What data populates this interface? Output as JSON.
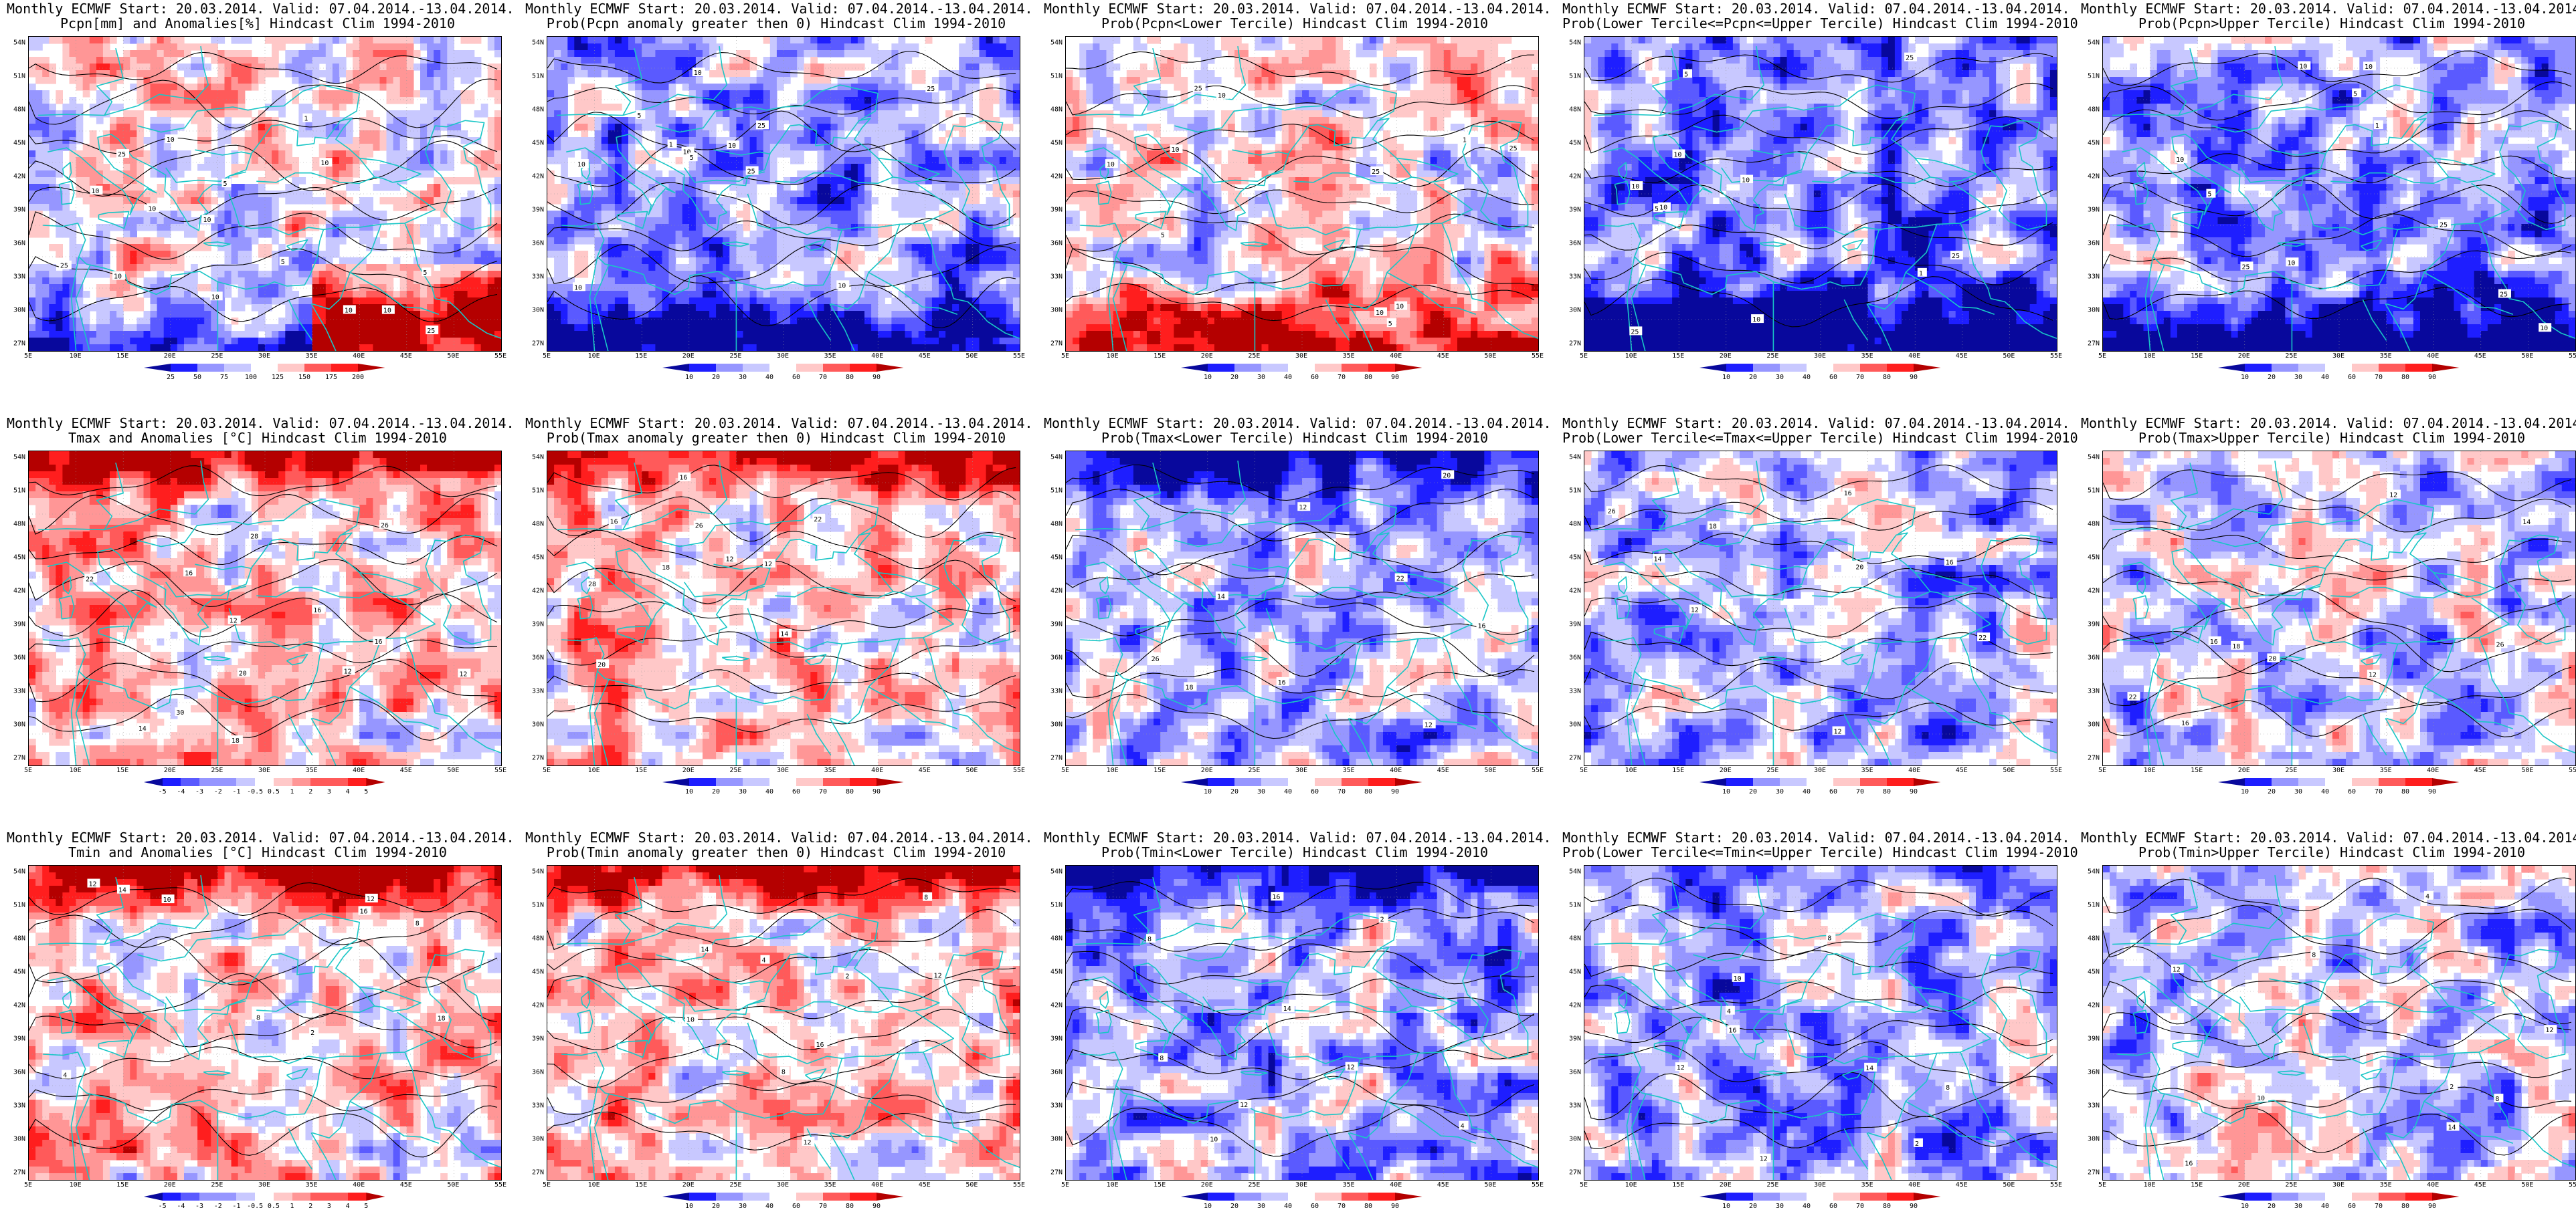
{
  "figure": {
    "header_common": "Monthly ECMWF Start: 20.03.2014. Valid: 07.04.2014.-13.04.2014.",
    "hindcast": "Hindcast Clim 1994-2010",
    "lat_ticks": [
      "54N",
      "51N",
      "48N",
      "45N",
      "42N",
      "39N",
      "36N",
      "33N",
      "30N",
      "27N"
    ],
    "lon_ticks": [
      "5E",
      "10E",
      "15E",
      "20E",
      "25E",
      "30E",
      "35E",
      "40E",
      "45E",
      "50E",
      "55E"
    ]
  },
  "colors": {
    "coast": "#19c6c6",
    "contour": "#000000",
    "scale_diverging": [
      "#08089c",
      "#1e1eff",
      "#5a5aff",
      "#9696ff",
      "#c8c8ff",
      "#ffffff",
      "#ffc8c8",
      "#ff9696",
      "#ff5a5a",
      "#ff1e1e",
      "#b40000"
    ],
    "scale_prob": [
      "#08089c",
      "#1e1eff",
      "#5a5aff",
      "#9696ff",
      "#c8c8ff",
      "#ffffff",
      "#ffc8c8",
      "#ff9696",
      "#ff5a5a",
      "#ff1e1e",
      "#b40000"
    ]
  },
  "panels": [
    {
      "line1": "Monthly ECMWF Start: 20.03.2014. Valid: 07.04.2014.-13.04.2014.",
      "line2": "Pcpn[mm] and Anomalies[%] Hindcast Clim 1994-2010",
      "field": "pcpn_anom",
      "bias": 0.1,
      "ticks": [
        "25",
        "50",
        "75",
        "100",
        "125",
        "150",
        "175",
        "200"
      ],
      "contour_labels": [
        "10",
        "5",
        "10",
        "10",
        "25",
        "10",
        "5",
        "10",
        "25",
        "10",
        "1",
        "5",
        "10",
        "10",
        "25",
        "10"
      ]
    },
    {
      "line1": "Monthly ECMWF Start: 20.03.2014. Valid: 07.04.2014.-13.04.2014.",
      "line2": "Prob(Pcpn anomaly greater then 0) Hindcast Clim 1994-2010",
      "field": "pcpn_prob_pos",
      "bias": -0.35,
      "ticks": [
        "10",
        "20",
        "30",
        "40",
        "60",
        "70",
        "80",
        "90"
      ],
      "contour_labels": [
        "10",
        "5",
        "10",
        "25",
        "10",
        "5",
        "10",
        "25",
        "10",
        "1",
        "10",
        "25"
      ]
    },
    {
      "line1": "Monthly ECMWF Start: 20.03.2014. Valid: 07.04.2014.-13.04.2014.",
      "line2": "Prob(Pcpn<Lower Tercile) Hindcast Clim 1994-2010",
      "field": "pcpn_lower",
      "bias": 0.05,
      "ticks": [
        "10",
        "20",
        "30",
        "40",
        "60",
        "70",
        "80",
        "90"
      ],
      "contour_labels": [
        "10",
        "5",
        "10",
        "25",
        "10",
        "5",
        "10",
        "25",
        "1",
        "10",
        "25"
      ]
    },
    {
      "line1": "Monthly ECMWF Start: 20.03.2014. Valid: 07.04.2014.-13.04.2014.",
      "line2": "Prob(Lower Tercile<=Pcpn<=Upper Tercile) Hindcast Clim 1994-2010",
      "field": "pcpn_mid",
      "bias": -0.55,
      "ticks": [
        "10",
        "20",
        "30",
        "40",
        "60",
        "70",
        "80",
        "90"
      ],
      "contour_labels": [
        "10",
        "5",
        "10",
        "25",
        "10",
        "5",
        "25",
        "10",
        "1",
        "10",
        "25"
      ]
    },
    {
      "line1": "Monthly ECMWF Start: 20.03.2014. Valid: 07.04.2014.-13.04.2014.",
      "line2": "Prob(Pcpn>Upper Tercile) Hindcast Clim 1994-2010",
      "field": "pcpn_upper",
      "bias": -0.4,
      "ticks": [
        "10",
        "20",
        "30",
        "40",
        "60",
        "70",
        "80",
        "90"
      ],
      "contour_labels": [
        "10",
        "5",
        "10",
        "25",
        "10",
        "5",
        "10",
        "25",
        "1",
        "10",
        "25"
      ]
    },
    {
      "line1": "Monthly ECMWF Start: 20.03.2014. Valid: 07.04.2014.-13.04.2014.",
      "line2": "Tmax and Anomalies [°C] Hindcast Clim 1994-2010",
      "field": "tmax_anom",
      "bias": 0.25,
      "ticks": [
        "-5",
        "-4",
        "-3",
        "-2",
        "-1",
        "-0.5",
        "0.5",
        "1",
        "2",
        "3",
        "4",
        "5"
      ],
      "contour_labels": [
        "12",
        "12",
        "16",
        "12",
        "16",
        "14",
        "16",
        "18",
        "20",
        "22",
        "26",
        "28",
        "30"
      ]
    },
    {
      "line1": "Monthly ECMWF Start: 20.03.2014. Valid: 07.04.2014.-13.04.2014.",
      "line2": "Prob(Tmax anomaly greater then 0) Hindcast Clim 1994-2010",
      "field": "tmax_prob_pos",
      "bias": 0.2,
      "ticks": [
        "10",
        "20",
        "30",
        "40",
        "60",
        "70",
        "80",
        "90"
      ],
      "contour_labels": [
        "12",
        "12",
        "16",
        "14",
        "16",
        "18",
        "20",
        "22",
        "26",
        "28"
      ]
    },
    {
      "line1": "Monthly ECMWF Start: 20.03.2014. Valid: 07.04.2014.-13.04.2014.",
      "line2": "Prob(Tmax<Lower Tercile) Hindcast Clim 1994-2010",
      "field": "tmax_lower",
      "bias": -0.3,
      "ticks": [
        "10",
        "20",
        "30",
        "40",
        "60",
        "70",
        "80",
        "90"
      ],
      "contour_labels": [
        "12",
        "12",
        "16",
        "14",
        "16",
        "18",
        "20",
        "22",
        "26"
      ]
    },
    {
      "line1": "Monthly ECMWF Start: 20.03.2014. Valid: 07.04.2014.-13.04.2014.",
      "line2": "Prob(Lower Tercile<=Tmax<=Upper Tercile) Hindcast Clim 1994-2010",
      "field": "tmax_mid",
      "bias": -0.35,
      "ticks": [
        "10",
        "20",
        "30",
        "40",
        "60",
        "70",
        "80",
        "90"
      ],
      "contour_labels": [
        "12",
        "12",
        "16",
        "14",
        "16",
        "18",
        "20",
        "22",
        "26"
      ]
    },
    {
      "line1": "Monthly ECMWF Start: 20.03.2014. Valid: 07.04.2014.-13.04.2014.",
      "line2": "Prob(Tmax>Upper Tercile) Hindcast Clim 1994-2010",
      "field": "tmax_upper",
      "bias": -0.15,
      "ticks": [
        "10",
        "20",
        "30",
        "40",
        "60",
        "70",
        "80",
        "90"
      ],
      "contour_labels": [
        "12",
        "12",
        "16",
        "14",
        "16",
        "18",
        "20",
        "22",
        "26"
      ]
    },
    {
      "line1": "Monthly ECMWF Start: 20.03.2014. Valid: 07.04.2014.-13.04.2014.",
      "line2": "Tmin and Anomalies [°C] Hindcast Clim 1994-2010",
      "field": "tmin_anom",
      "bias": 0.2,
      "ticks": [
        "-5",
        "-4",
        "-3",
        "-2",
        "-1",
        "-0.5",
        "0.5",
        "1",
        "2",
        "3",
        "4",
        "5"
      ],
      "contour_labels": [
        "2",
        "4",
        "8",
        "12",
        "8",
        "10",
        "12",
        "14",
        "16",
        "18"
      ]
    },
    {
      "line1": "Monthly ECMWF Start: 20.03.2014. Valid: 07.04.2014.-13.04.2014.",
      "line2": "Prob(Tmin anomaly greater then 0) Hindcast Clim 1994-2010",
      "field": "tmin_prob_pos",
      "bias": 0.25,
      "ticks": [
        "10",
        "20",
        "30",
        "40",
        "60",
        "70",
        "80",
        "90"
      ],
      "contour_labels": [
        "2",
        "4",
        "8",
        "12",
        "8",
        "10",
        "12",
        "14",
        "16"
      ]
    },
    {
      "line1": "Monthly ECMWF Start: 20.03.2014. Valid: 07.04.2014.-13.04.2014.",
      "line2": "Prob(Tmin<Lower Tercile) Hindcast Clim 1994-2010",
      "field": "tmin_lower",
      "bias": -0.3,
      "ticks": [
        "10",
        "20",
        "30",
        "40",
        "60",
        "70",
        "80",
        "90"
      ],
      "contour_labels": [
        "2",
        "4",
        "8",
        "12",
        "8",
        "10",
        "12",
        "14",
        "16"
      ]
    },
    {
      "line1": "Monthly ECMWF Start: 20.03.2014. Valid: 07.04.2014.-13.04.2014.",
      "line2": "Prob(Lower Tercile<=Tmin<=Upper Tercile) Hindcast Clim 1994-2010",
      "field": "tmin_mid",
      "bias": -0.35,
      "ticks": [
        "10",
        "20",
        "30",
        "40",
        "60",
        "70",
        "80",
        "90"
      ],
      "contour_labels": [
        "2",
        "4",
        "8",
        "12",
        "8",
        "10",
        "12",
        "14",
        "16"
      ]
    },
    {
      "line1": "Monthly ECMWF Start: 20.03.2014. Valid: 07.04.2014.-13.04.2014.",
      "line2": "Prob(Tmin>Upper Tercile) Hindcast Clim 1994-2010",
      "field": "tmin_upper",
      "bias": -0.2,
      "ticks": [
        "10",
        "20",
        "30",
        "40",
        "60",
        "70",
        "80",
        "90"
      ],
      "contour_labels": [
        "2",
        "4",
        "8",
        "12",
        "8",
        "10",
        "12",
        "14",
        "16"
      ]
    }
  ]
}
